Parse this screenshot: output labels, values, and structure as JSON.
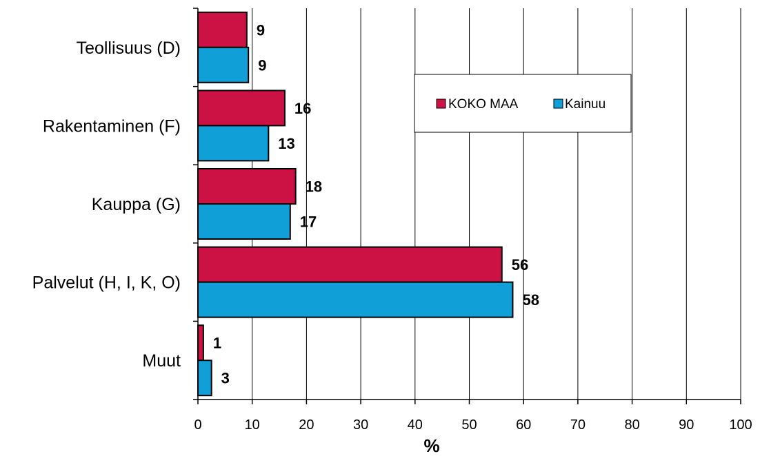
{
  "chart_data": {
    "type": "bar",
    "orientation": "horizontal",
    "categories": [
      "Teollisuus (D)",
      "Rakentaminen (F)",
      "Kauppa (G)",
      "Palvelut (H, I, K, O)",
      "Muut"
    ],
    "series": [
      {
        "name": "KOKO MAA",
        "values": [
          9,
          16,
          18,
          56,
          1
        ],
        "labels": [
          "9",
          "16",
          "18",
          "56",
          "1"
        ],
        "color": "#cc1144"
      },
      {
        "name": "Kainuu",
        "values": [
          9.3,
          13,
          17,
          58,
          2.5
        ],
        "labels": [
          "9",
          "13",
          "17",
          "58",
          "3"
        ],
        "color": "#119fd8"
      }
    ],
    "xlabel": "%",
    "xlim": [
      0,
      100
    ],
    "xticks": [
      0,
      10,
      20,
      30,
      40,
      50,
      60,
      70,
      80,
      90,
      100
    ],
    "grid": "vertical",
    "legend_position": "top-right"
  }
}
